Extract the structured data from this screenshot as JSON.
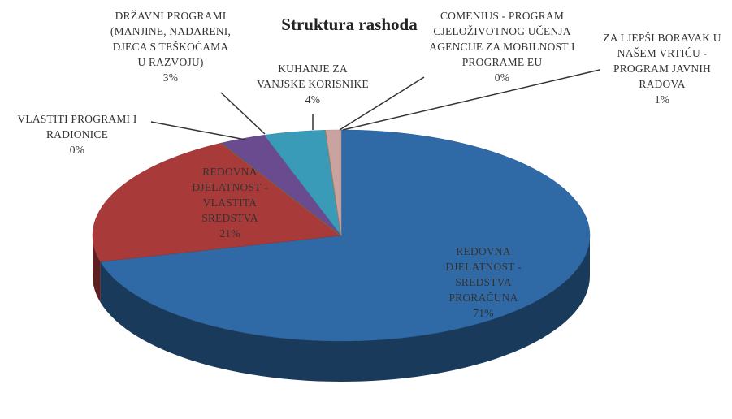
{
  "chart_data": {
    "type": "pie",
    "title": "Struktura rashoda",
    "categories": [
      "REDOVNA DJELATNOST - SREDSTVA PRORAČUNA",
      "REDOVNA DJELATNOST - VLASTITA SREDSTVA",
      "VLASTITI PROGRAMI I RADIONICE",
      "DRŽAVNI PROGRAMI (MANJINE, NADARENI, DJECA S TEŠKOĆAMA U RAZVOJU)",
      "KUHANJE ZA VANJSKE KORISNIKE",
      "COMENIUS - PROGRAM CJELOŽIVOTNOG UČENJA AGENCIJE ZA MOBILNOST I PROGRAME EU",
      "ZA LJEPŠI BORAVAK U NAŠEM VRTIĆU - PROGRAM JAVNIH RADOVA"
    ],
    "values": [
      71,
      21,
      0,
      3,
      4,
      0,
      1
    ],
    "value_labels": [
      "71%",
      "21%",
      "0%",
      "3%",
      "4%",
      "0%",
      "1%"
    ],
    "colors": [
      "#2f6aa7",
      "#a93a3a",
      "#7f9c3c",
      "#6b4b8f",
      "#3a9bb9",
      "#e07b2c",
      "#c9a3a0"
    ]
  }
}
